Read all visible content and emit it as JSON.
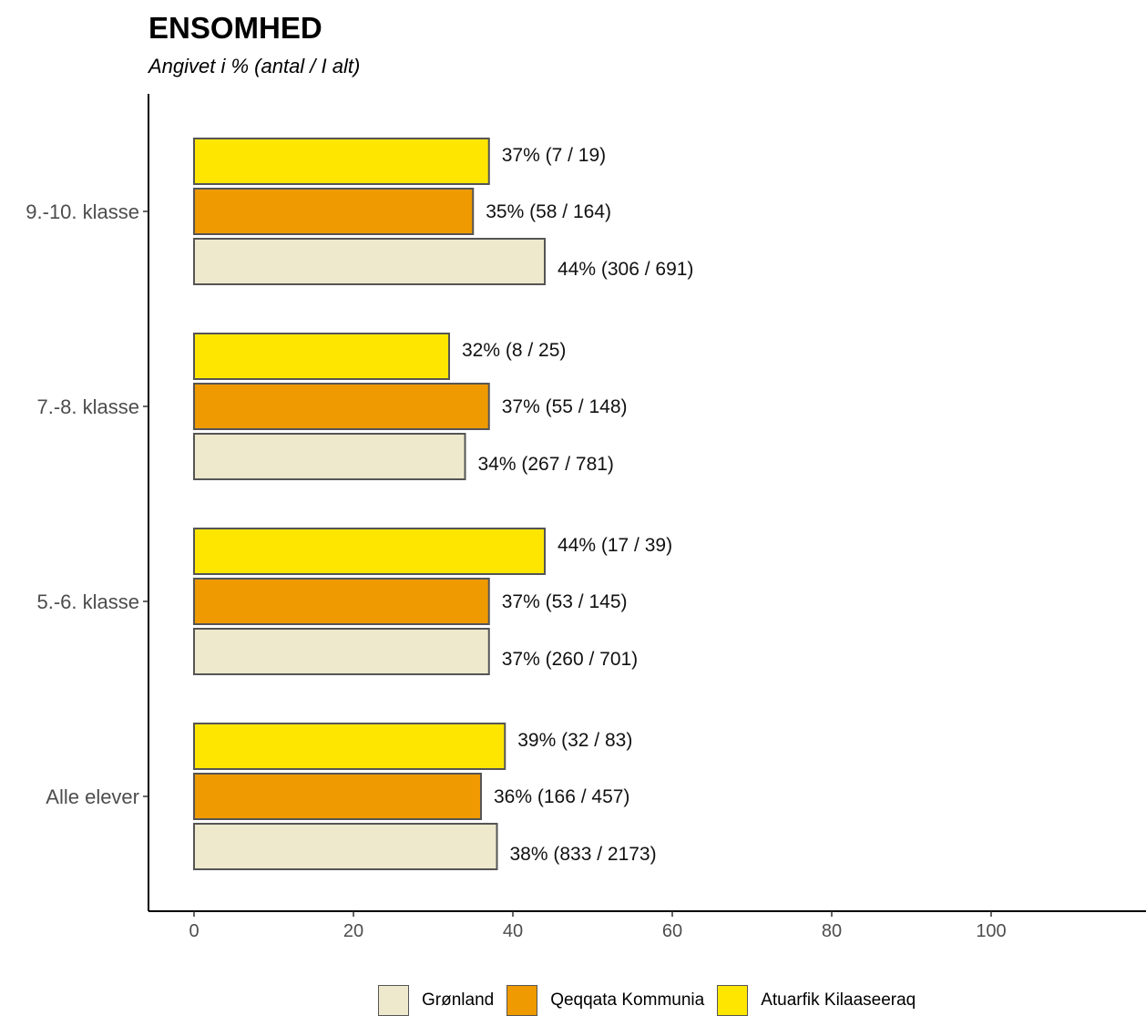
{
  "chart_data": {
    "type": "bar",
    "orientation": "horizontal",
    "title": "ENSOMHED",
    "subtitle": "Angivet i % (antal / I alt)",
    "categories": [
      "9.-10. klasse",
      "7.-8. klasse",
      "5.-6. klasse",
      "Alle elever"
    ],
    "series": [
      {
        "name": "Atuarfik Kilaaseeraq",
        "color": "#FFE600",
        "values": [
          37,
          32,
          44,
          39
        ],
        "labels": [
          "37% (7 / 19)",
          "32% (8 / 25)",
          "44% (17 / 39)",
          "39% (32 / 83)"
        ]
      },
      {
        "name": "Qeqqata Kommunia",
        "color": "#EE9A00",
        "values": [
          35,
          37,
          37,
          36
        ],
        "labels": [
          "35% (58 / 164)",
          "37% (55 / 148)",
          "37% (53 / 145)",
          "36% (166 / 457)"
        ]
      },
      {
        "name": "Grønland",
        "color": "#EEE8CD",
        "values": [
          44,
          34,
          37,
          38
        ],
        "labels": [
          "44% (306 / 691)",
          "34% (267 / 781)",
          "37% (260 / 701)",
          "38% (833 / 2173)"
        ]
      }
    ],
    "xlim": [
      0,
      100
    ],
    "x_ticks": [
      "0",
      "20",
      "40",
      "60",
      "80",
      "100"
    ],
    "grid": false,
    "legend_position": "bottom",
    "legend_order": [
      "Grønland",
      "Qeqqata Kommunia",
      "Atuarfik Kilaaseeraq"
    ]
  }
}
